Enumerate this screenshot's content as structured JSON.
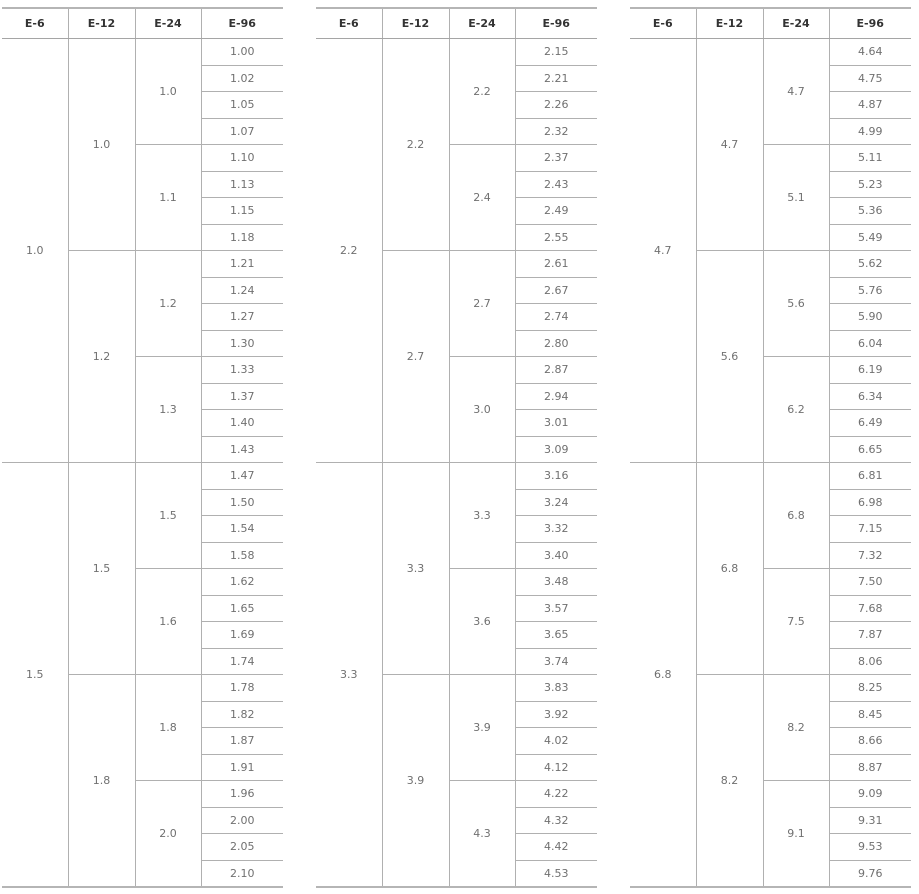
{
  "headers": [
    "E-6",
    "E-12",
    "E-24",
    "E-96"
  ],
  "tables": [
    {
      "e6": [
        "1.0",
        "1.5"
      ],
      "e12": [
        "1.0",
        "1.2",
        "1.5",
        "1.8"
      ],
      "e24": [
        "1.0",
        "1.1",
        "1.2",
        "1.3",
        "1.5",
        "1.6",
        "1.8",
        "2.0"
      ],
      "e96": [
        "1.00",
        "1.02",
        "1.05",
        "1.07",
        "1.10",
        "1.13",
        "1.15",
        "1.18",
        "1.21",
        "1.24",
        "1.27",
        "1.30",
        "1.33",
        "1.37",
        "1.40",
        "1.43",
        "1.47",
        "1.50",
        "1.54",
        "1.58",
        "1.62",
        "1.65",
        "1.69",
        "1.74",
        "1.78",
        "1.82",
        "1.87",
        "1.91",
        "1.96",
        "2.00",
        "2.05",
        "2.10"
      ]
    },
    {
      "e6": [
        "2.2",
        "3.3"
      ],
      "e12": [
        "2.2",
        "2.7",
        "3.3",
        "3.9"
      ],
      "e24": [
        "2.2",
        "2.4",
        "2.7",
        "3.0",
        "3.3",
        "3.6",
        "3.9",
        "4.3"
      ],
      "e96": [
        "2.15",
        "2.21",
        "2.26",
        "2.32",
        "2.37",
        "2.43",
        "2.49",
        "2.55",
        "2.61",
        "2.67",
        "2.74",
        "2.80",
        "2.87",
        "2.94",
        "3.01",
        "3.09",
        "3.16",
        "3.24",
        "3.32",
        "3.40",
        "3.48",
        "3.57",
        "3.65",
        "3.74",
        "3.83",
        "3.92",
        "4.02",
        "4.12",
        "4.22",
        "4.32",
        "4.42",
        "4.53"
      ]
    },
    {
      "e6": [
        "4.7",
        "6.8"
      ],
      "e12": [
        "4.7",
        "5.6",
        "6.8",
        "8.2"
      ],
      "e24": [
        "4.7",
        "5.1",
        "5.6",
        "6.2",
        "6.8",
        "7.5",
        "8.2",
        "9.1"
      ],
      "e96": [
        "4.64",
        "4.75",
        "4.87",
        "4.99",
        "5.11",
        "5.23",
        "5.36",
        "5.49",
        "5.62",
        "5.76",
        "5.90",
        "6.04",
        "6.19",
        "6.34",
        "6.49",
        "6.65",
        "6.81",
        "6.98",
        "7.15",
        "7.32",
        "7.50",
        "7.68",
        "7.87",
        "8.06",
        "8.25",
        "8.45",
        "8.66",
        "8.87",
        "9.09",
        "9.31",
        "9.53",
        "9.76"
      ]
    }
  ]
}
